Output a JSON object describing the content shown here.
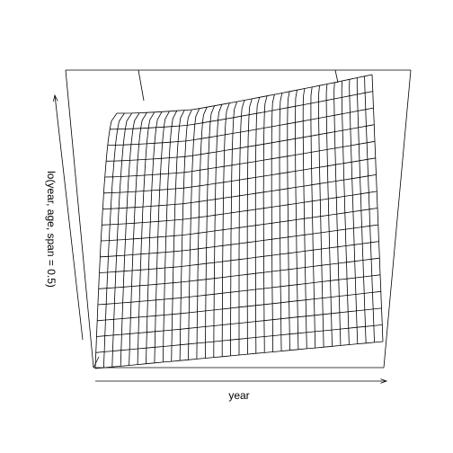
{
  "chart_data": {
    "type": "surface",
    "xlabel": "year",
    "ylabel": "lo(year, age, span = 0.5)",
    "mesh": {
      "rows": 16,
      "cols": 34
    },
    "line_color": "#000000",
    "background_color": "#ffffff"
  }
}
